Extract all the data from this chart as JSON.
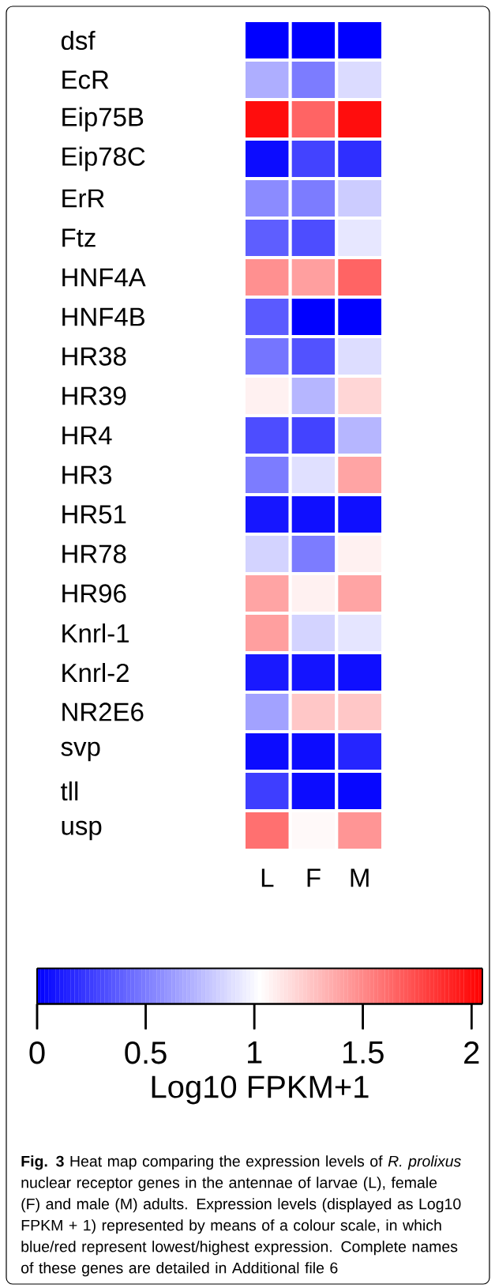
{
  "chart_data": {
    "type": "heatmap",
    "categories": [
      "L",
      "F",
      "M"
    ],
    "y_categories": [
      "dsf",
      "EcR",
      "Eip75B",
      "Eip78C",
      "ErR",
      "Ftz",
      "HNF4A",
      "HNF4B",
      "HR38",
      "HR39",
      "HR4",
      "HR3",
      "HR51",
      "HR78",
      "HR96",
      "Knrl-1",
      "Knrl-2",
      "NR2E6",
      "svp",
      "tll",
      "usp"
    ],
    "cells": [
      [
        0,
        0,
        0
      ],
      [
        0.7,
        0.5,
        0.88
      ],
      [
        2.0,
        1.65,
        2.0
      ],
      [
        0.05,
        0.27,
        0.19
      ],
      [
        0.56,
        0.5,
        0.82
      ],
      [
        0.38,
        0.31,
        0.93
      ],
      [
        1.47,
        1.41,
        1.65
      ],
      [
        0.36,
        0,
        0
      ],
      [
        0.47,
        0.33,
        0.89
      ],
      [
        1.08,
        0.73,
        1.19
      ],
      [
        0.31,
        0.27,
        0.73
      ],
      [
        0.5,
        0.9,
        1.39
      ],
      [
        0.09,
        0.06,
        0.06
      ],
      [
        0.85,
        0.5,
        1.08
      ],
      [
        1.39,
        1.08,
        1.39
      ],
      [
        1.41,
        0.85,
        0.92
      ],
      [
        0.1,
        0.08,
        0.06
      ],
      [
        0.65,
        1.25,
        1.25
      ],
      [
        0.05,
        0.05,
        0.15
      ],
      [
        0.25,
        0.05,
        0.03
      ],
      [
        1.6,
        1.05,
        1.45
      ]
    ],
    "clim": [
      0,
      2.05
    ],
    "cticks": [
      0,
      0.5,
      1,
      1.5,
      2
    ],
    "clabel": "Log10 FPKM+1",
    "annotations": [
      "**Fig. 3** Heat map comparing the expression levels of *R. prolixus* nuclear receptor genes in the antennae of larvae (L), female (F) and male (M) adults. Expression levels (displayed as Log10 FPKM + 1) represented by means of a colour scale, in which blue/red represent lowest/highest expression. Complete names of these genes are detailed in Additional file 6"
    ]
  }
}
